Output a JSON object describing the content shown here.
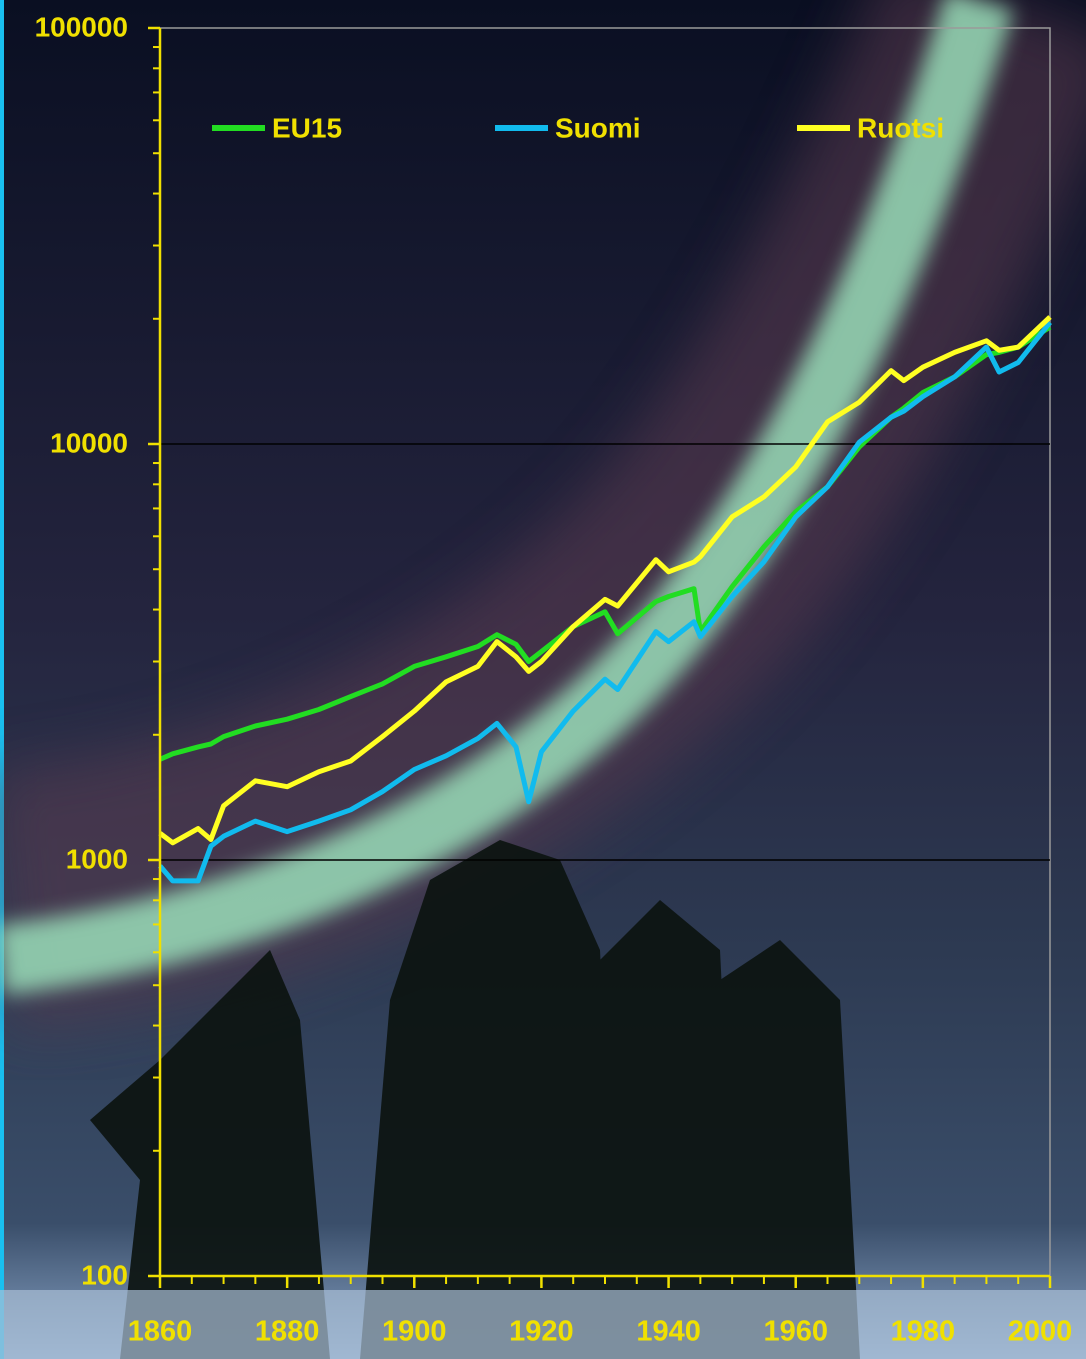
{
  "chart_data": {
    "type": "line",
    "x": [
      1860,
      1862,
      1866,
      1868,
      1870,
      1875,
      1880,
      1885,
      1890,
      1895,
      1900,
      1905,
      1910,
      1913,
      1916,
      1918,
      1920,
      1925,
      1930,
      1932,
      1938,
      1940,
      1944,
      1945,
      1950,
      1955,
      1960,
      1965,
      1970,
      1975,
      1977,
      1980,
      1985,
      1990,
      1992,
      1995,
      2000
    ],
    "series": [
      {
        "name": "EU15",
        "color": "#22dd22",
        "values": [
          1746,
          1800,
          1870,
          1900,
          1980,
          2100,
          2180,
          2300,
          2470,
          2650,
          2920,
          3080,
          3260,
          3480,
          3300,
          3000,
          3170,
          3640,
          3950,
          3500,
          4180,
          4300,
          4490,
          3540,
          4540,
          5660,
          6870,
          7890,
          9840,
          11600,
          12200,
          13300,
          14500,
          16400,
          16600,
          17100,
          19100
        ]
      },
      {
        "name": "Suomi",
        "color": "#11bbee",
        "values": [
          968,
          891,
          891,
          1080,
          1140,
          1240,
          1170,
          1240,
          1320,
          1460,
          1650,
          1780,
          1960,
          2130,
          1870,
          1380,
          1820,
          2280,
          2720,
          2570,
          3540,
          3350,
          3740,
          3440,
          4300,
          5210,
          6680,
          7890,
          10100,
          11600,
          12000,
          13000,
          14500,
          17100,
          14900,
          15700,
          19600
        ]
      },
      {
        "name": "Ruotsi",
        "color": "#ffff22",
        "values": [
          1160,
          1100,
          1190,
          1120,
          1350,
          1550,
          1500,
          1630,
          1730,
          1980,
          2280,
          2680,
          2920,
          3350,
          3080,
          2840,
          3000,
          3640,
          4230,
          4080,
          5270,
          4930,
          5200,
          5360,
          6680,
          7460,
          8810,
          11300,
          12600,
          15000,
          14200,
          15300,
          16600,
          17700,
          16800,
          17100,
          20200
        ]
      }
    ],
    "xlim": [
      1860,
      2000
    ],
    "xticks": [
      1860,
      1880,
      1900,
      1920,
      1940,
      1960,
      1980,
      2000
    ],
    "ylim": [
      100,
      100000
    ],
    "yticks": [
      100,
      1000,
      10000,
      100000
    ],
    "log_scale": true,
    "grid": true,
    "axis_color": "#f0e000",
    "legend": "top"
  }
}
